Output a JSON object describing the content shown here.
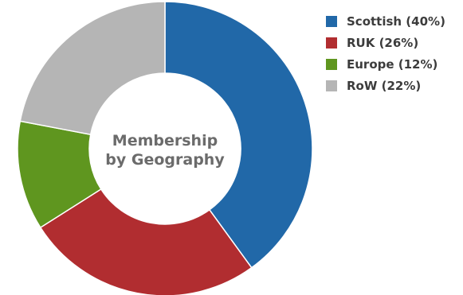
{
  "chart_data": {
    "type": "pie",
    "variant": "donut",
    "title": "Membership by Geography",
    "title_lines": [
      "Membership",
      "by Geography"
    ],
    "unit": "%",
    "legend_position": "right",
    "slices": [
      {
        "label": "Scottish (40%)",
        "name": "Scottish",
        "value": 40,
        "color": "#2168a8"
      },
      {
        "label": "RUK (26%)",
        "name": "RUK",
        "value": 26,
        "color": "#b12d30"
      },
      {
        "label": "Europe (12%)",
        "name": "Europe",
        "value": 12,
        "color": "#5f961f"
      },
      {
        "label": "RoW (22%)",
        "name": "RoW",
        "value": 22,
        "color": "#b5b5b5"
      }
    ]
  }
}
